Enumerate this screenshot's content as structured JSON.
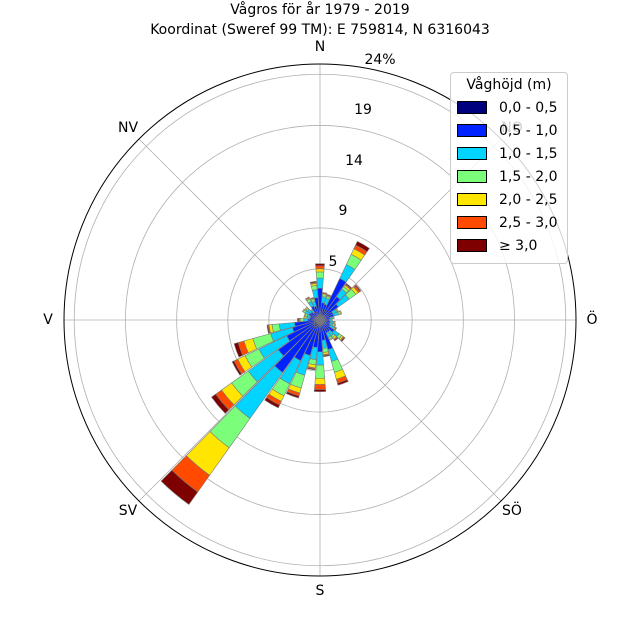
{
  "chart_data": {
    "type": "windrose",
    "title": "Vågros för år 1979 - 2019",
    "subtitle": "Koordinat (Sweref 99 TM): E 759814, N 6316043",
    "directions": [
      "N",
      "NO",
      "Ö",
      "SÖ",
      "S",
      "SV",
      "V",
      "NV"
    ],
    "radial_ticks": [
      "5",
      "9",
      "14",
      "19",
      "24%"
    ],
    "radial_tick_values": [
      5,
      9,
      14,
      19,
      24
    ],
    "rmax": 25,
    "legend": {
      "title": "Våghöjd (m)",
      "bins": [
        "0,0 - 0,5",
        "0,5 - 1,0",
        "1,0 - 1,5",
        "1,5 - 2,0",
        "2,0 - 2,5",
        "2,5 - 3,0",
        "≥ 3,0"
      ],
      "colors": [
        "#00007f",
        "#0022ff",
        "#00d4ff",
        "#7bff7b",
        "#ffe500",
        "#ff4a00",
        "#7f0000"
      ]
    },
    "sector_width_deg": 10,
    "sectors": [
      {
        "dir": 0,
        "values": [
          0.8,
          2.3,
          1.0,
          0.6,
          0.3,
          0.3,
          0.2
        ]
      },
      {
        "dir": 10,
        "values": [
          0.5,
          1.2,
          0.6,
          0.2,
          0.1,
          0.1,
          0.0
        ]
      },
      {
        "dir": 20,
        "values": [
          0.4,
          1.2,
          0.6,
          0.2,
          0.1,
          0.1,
          0.0
        ]
      },
      {
        "dir": 30,
        "values": [
          1.0,
          3.5,
          1.5,
          1.1,
          0.6,
          0.4,
          0.4
        ]
      },
      {
        "dir": 40,
        "values": [
          0.6,
          2.2,
          0.9,
          0.3,
          0.2,
          0.1,
          0.1
        ]
      },
      {
        "dir": 50,
        "values": [
          0.5,
          1.7,
          1.3,
          0.8,
          0.3,
          0.2,
          0.1
        ]
      },
      {
        "dir": 60,
        "values": [
          0.4,
          1.0,
          0.4,
          0.1,
          0.1,
          0.0,
          0.0
        ]
      },
      {
        "dir": 70,
        "values": [
          0.4,
          1.0,
          0.5,
          0.2,
          0.1,
          0.0,
          0.0
        ]
      },
      {
        "dir": 80,
        "values": [
          0.3,
          0.7,
          0.2,
          0.1,
          0.1,
          0.0,
          0.0
        ]
      },
      {
        "dir": 90,
        "values": [
          0.3,
          0.6,
          0.2,
          0.1,
          0.0,
          0.0,
          0.0
        ]
      },
      {
        "dir": 100,
        "values": [
          0.3,
          0.7,
          0.3,
          0.1,
          0.1,
          0.0,
          0.0
        ]
      },
      {
        "dir": 110,
        "values": [
          0.3,
          0.7,
          0.3,
          0.2,
          0.1,
          0.0,
          0.0
        ]
      },
      {
        "dir": 120,
        "values": [
          0.3,
          0.8,
          0.4,
          0.1,
          0.1,
          0.1,
          0.0
        ]
      },
      {
        "dir": 130,
        "values": [
          0.4,
          1.3,
          0.6,
          0.3,
          0.2,
          0.1,
          0.1
        ]
      },
      {
        "dir": 140,
        "values": [
          0.4,
          1.0,
          0.5,
          0.2,
          0.2,
          0.1,
          0.1
        ]
      },
      {
        "dir": 150,
        "values": [
          0.4,
          1.0,
          0.5,
          0.2,
          0.1,
          0.0,
          0.0
        ]
      },
      {
        "dir": 160,
        "values": [
          0.5,
          2.5,
          1.2,
          1.1,
          0.7,
          0.4,
          0.2
        ]
      },
      {
        "dir": 170,
        "values": [
          0.5,
          1.5,
          0.8,
          0.4,
          0.2,
          0.1,
          0.1
        ]
      },
      {
        "dir": 180,
        "values": [
          0.6,
          2.5,
          1.3,
          1.3,
          0.6,
          0.5,
          0.2
        ]
      },
      {
        "dir": 190,
        "values": [
          0.5,
          2.2,
          1.2,
          0.5,
          0.3,
          0.1,
          0.1
        ]
      },
      {
        "dir": 200,
        "values": [
          0.6,
          3.0,
          2.0,
          1.3,
          0.5,
          0.3,
          0.2
        ]
      },
      {
        "dir": 210,
        "values": [
          0.7,
          3.7,
          2.5,
          1.3,
          0.6,
          0.4,
          0.3
        ]
      },
      {
        "dir": 220,
        "values": [
          0.8,
          5.5,
          5.5,
          3.5,
          3.3,
          2.0,
          1.5
        ]
      },
      {
        "dir": 230,
        "values": [
          0.7,
          4.3,
          3.6,
          2.0,
          1.2,
          0.7,
          0.5
        ]
      },
      {
        "dir": 240,
        "values": [
          0.6,
          3.0,
          3.0,
          1.5,
          0.8,
          0.4,
          0.2
        ]
      },
      {
        "dir": 250,
        "values": [
          0.6,
          2.2,
          2.2,
          1.8,
          0.9,
          0.6,
          0.4
        ]
      },
      {
        "dir": 260,
        "values": [
          0.5,
          2.0,
          1.5,
          0.7,
          0.3,
          0.1,
          0.1
        ]
      },
      {
        "dir": 270,
        "values": [
          0.3,
          0.9,
          0.4,
          0.3,
          0.1,
          0.1,
          0.1
        ]
      },
      {
        "dir": 280,
        "values": [
          0.3,
          0.7,
          0.3,
          0.2,
          0.1,
          0.0,
          0.0
        ]
      },
      {
        "dir": 290,
        "values": [
          0.3,
          0.7,
          0.3,
          0.2,
          0.1,
          0.0,
          0.0
        ]
      },
      {
        "dir": 300,
        "values": [
          0.3,
          0.9,
          0.4,
          0.2,
          0.1,
          0.0,
          0.0
        ]
      },
      {
        "dir": 310,
        "values": [
          0.3,
          0.8,
          0.4,
          0.2,
          0.1,
          0.0,
          0.0
        ]
      },
      {
        "dir": 320,
        "values": [
          0.3,
          0.6,
          0.3,
          0.1,
          0.0,
          0.0,
          0.0
        ]
      },
      {
        "dir": 330,
        "values": [
          0.4,
          1.1,
          0.5,
          0.3,
          0.1,
          0.1,
          0.0
        ]
      },
      {
        "dir": 340,
        "values": [
          0.4,
          1.0,
          0.5,
          0.2,
          0.1,
          0.1,
          0.0
        ]
      },
      {
        "dir": 350,
        "values": [
          0.5,
          1.7,
          0.8,
          0.4,
          0.2,
          0.1,
          0.1
        ]
      }
    ]
  }
}
